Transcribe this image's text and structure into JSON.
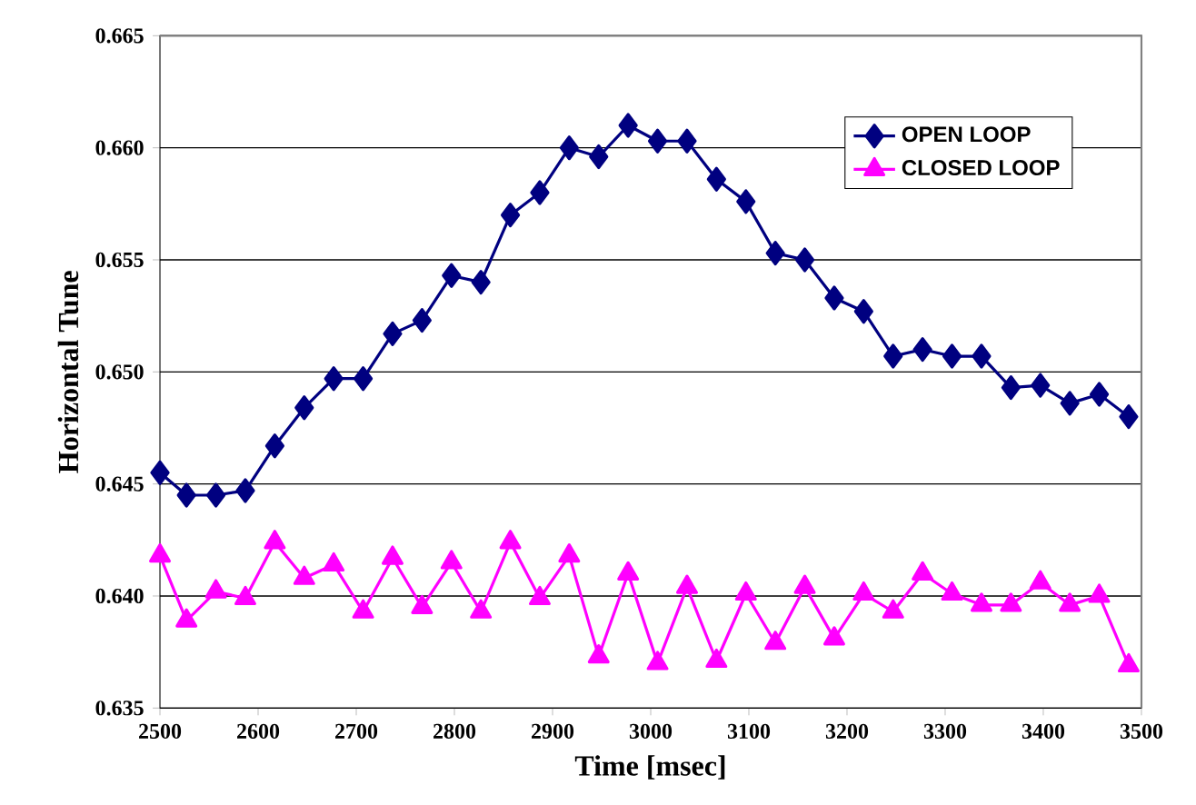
{
  "chart_data": {
    "type": "line",
    "xlabel": "Time [msec]",
    "ylabel": "Horizontal Tune",
    "xlim": [
      2500,
      3500
    ],
    "ylim": [
      0.635,
      0.665
    ],
    "xticks": [
      2500,
      2600,
      2700,
      2800,
      2900,
      3000,
      3100,
      3200,
      3300,
      3400,
      3500
    ],
    "yticks": [
      0.635,
      {
        "value": 0.64,
        "label": "0.640"
      },
      0.645,
      {
        "value": 0.65,
        "label": "0.650"
      },
      0.655,
      {
        "value": 0.66,
        "label": "0.660"
      },
      0.665
    ],
    "grid": "y",
    "legend": "top right",
    "x": [
      2500,
      2527,
      2557,
      2587,
      2617,
      2647,
      2677,
      2707,
      2737,
      2767,
      2797,
      2827,
      2857,
      2887,
      2917,
      2947,
      2977,
      3007,
      3037,
      3067,
      3097,
      3127,
      3157,
      3187,
      3217,
      3247,
      3277,
      3307,
      3337,
      3367,
      3397,
      3427,
      3457,
      3487
    ],
    "series": [
      {
        "name": "OPEN LOOP",
        "color": "#000080",
        "marker": "diamond",
        "values": [
          0.6455,
          0.6445,
          0.6445,
          0.6447,
          0.6467,
          0.6484,
          0.6497,
          0.6497,
          0.6517,
          0.6523,
          0.6543,
          0.654,
          0.657,
          0.658,
          0.66,
          0.6596,
          0.661,
          0.6603,
          0.6603,
          0.6586,
          0.6576,
          0.6553,
          0.655,
          0.6533,
          0.6527,
          0.6507,
          0.651,
          0.6507,
          0.6507,
          0.6493,
          0.6494,
          0.6486,
          0.649,
          0.648
        ]
      },
      {
        "name": "CLOSED LOOP",
        "color": "#ff00ff",
        "marker": "triangle",
        "values": [
          0.6418,
          0.6389,
          0.6402,
          0.6399,
          0.6424,
          0.6408,
          0.6414,
          0.6393,
          0.6417,
          0.6395,
          0.6415,
          0.6393,
          0.6424,
          0.6399,
          0.6418,
          0.6373,
          0.641,
          0.637,
          0.6404,
          0.6371,
          0.6401,
          0.6379,
          0.6404,
          0.6381,
          0.6401,
          0.6393,
          0.641,
          0.6401,
          0.6396,
          0.6396,
          0.6406,
          0.6396,
          0.64,
          0.6369
        ]
      }
    ]
  }
}
